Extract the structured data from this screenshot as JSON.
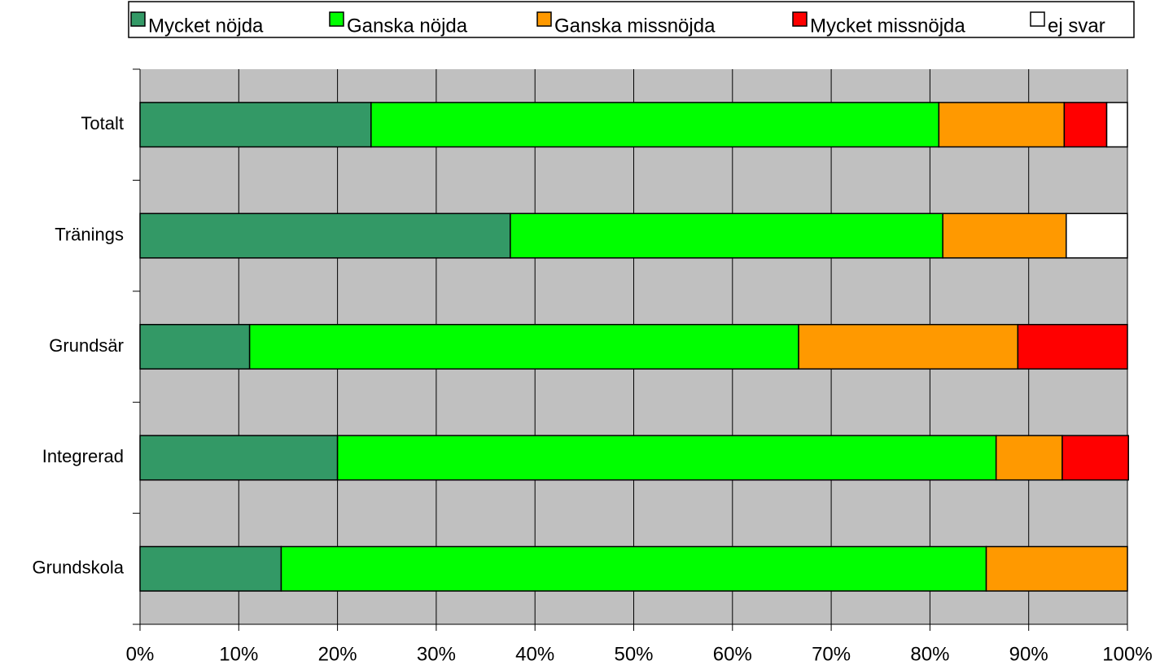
{
  "chart_data": {
    "type": "stacked-bar-horizontal",
    "categories": [
      "Totalt",
      "Tränings",
      "Grundsär",
      "Integrerad",
      "Grundskola"
    ],
    "series": [
      {
        "name": "Mycket nöjda",
        "color": "#339966",
        "values": [
          23.4,
          37.5,
          11.1,
          20,
          14.3
        ]
      },
      {
        "name": "Ganska nöjda",
        "color": "#00ff00",
        "values": [
          57.5,
          43.8,
          55.6,
          66.7,
          71.4
        ]
      },
      {
        "name": "Ganska missnöjda",
        "color": "#ff9900",
        "values": [
          12.7,
          12.5,
          22.2,
          6.7,
          14.3
        ]
      },
      {
        "name": "Mycket missnöjda",
        "color": "#ff0000",
        "values": [
          4.3,
          0,
          11.1,
          6.7,
          0
        ]
      },
      {
        "name": "ej svar",
        "color": "#ffffff",
        "values": [
          2.1,
          6.2,
          0,
          0,
          0
        ]
      }
    ],
    "xlim": [
      0,
      100
    ],
    "xticks": [
      {
        "value": 0,
        "label": "0%"
      },
      {
        "value": 10,
        "label": "10%"
      },
      {
        "value": 20,
        "label": "20%"
      },
      {
        "value": 30,
        "label": "30%"
      },
      {
        "value": 40,
        "label": "40%"
      },
      {
        "value": 50,
        "label": "50%"
      },
      {
        "value": 60,
        "label": "60%"
      },
      {
        "value": 70,
        "label": "70%"
      },
      {
        "value": 80,
        "label": "80%"
      },
      {
        "value": 90,
        "label": "90%"
      },
      {
        "value": 100,
        "label": "100%"
      }
    ],
    "grid": true,
    "legend": "top"
  }
}
